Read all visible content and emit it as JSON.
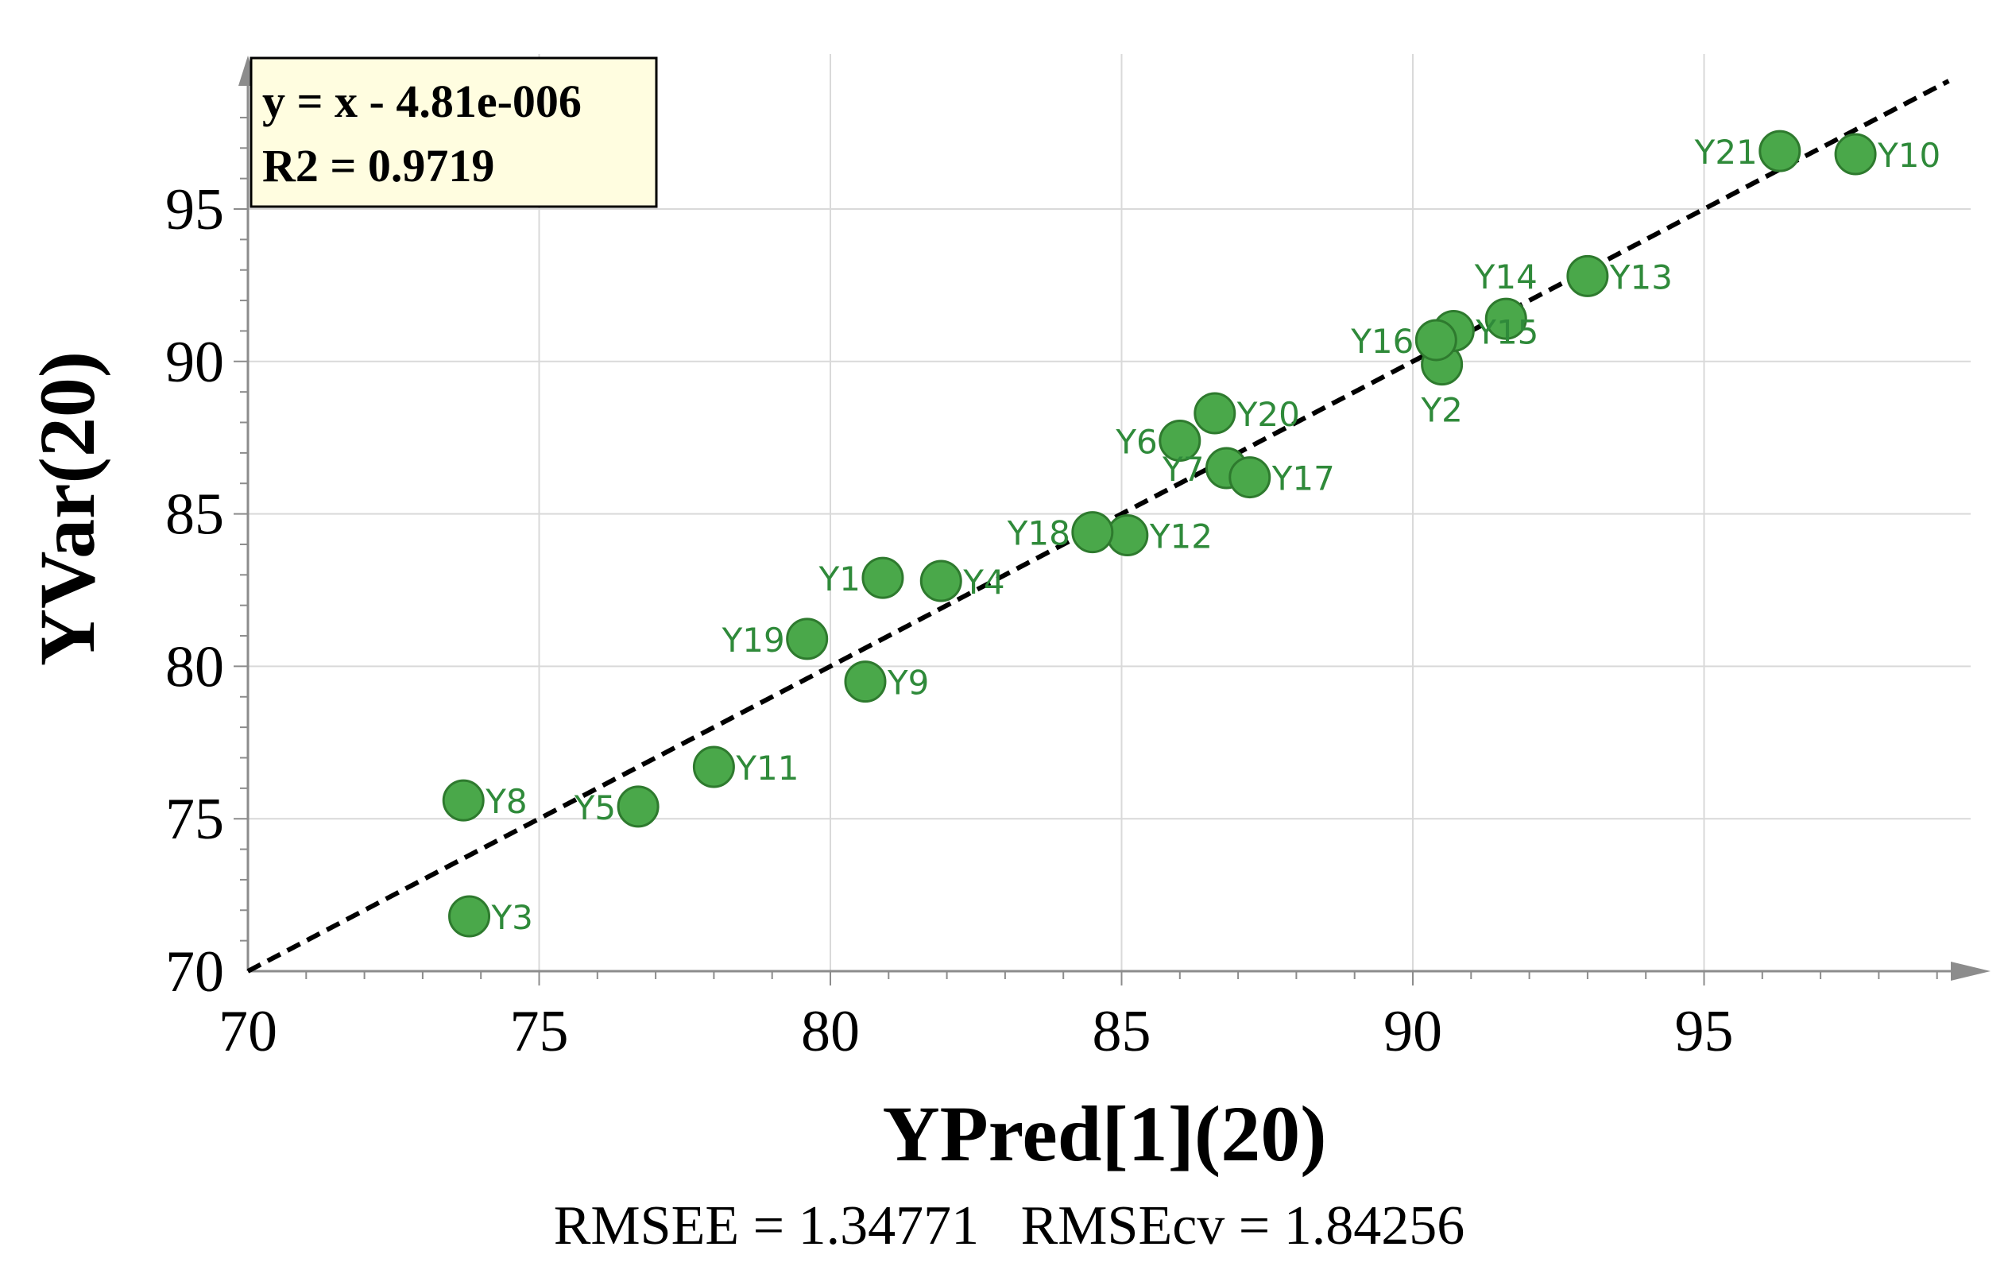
{
  "chart_data": {
    "type": "scatter",
    "xlabel": "YPred[1](20)",
    "ylabel": "YVar(20)",
    "xlim": [
      70,
      100
    ],
    "ylim": [
      70,
      99
    ],
    "x_ticks": [
      70,
      75,
      80,
      85,
      90,
      95
    ],
    "y_ticks": [
      70,
      75,
      80,
      85,
      90,
      95
    ],
    "grid": true,
    "fit_line": {
      "slope": 1,
      "intercept": 0,
      "style": "dashed",
      "color": "#000000"
    },
    "annotation": {
      "equation": "y = x - 4.81e-006",
      "r2": "R2 = 0.9719",
      "placement": "top-left"
    },
    "footer": "RMSEE = 1.34771   RMSEcv = 1.84256",
    "colors": {
      "point_fill": "#4aa84a",
      "point_stroke": "#2e7a2e",
      "label": "#2f8a3a",
      "annotation_bg": "#fffde0",
      "grid": "#d9d9d9",
      "axis": "#8c8c8c"
    },
    "series": [
      {
        "name": "Observations",
        "points": [
          {
            "label": "Y1",
            "x": 80.9,
            "y": 82.9,
            "label_pos": "left"
          },
          {
            "label": "Y2",
            "x": 90.5,
            "y": 89.9,
            "label_pos": "below"
          },
          {
            "label": "Y3",
            "x": 73.8,
            "y": 71.8,
            "label_pos": "right"
          },
          {
            "label": "Y4",
            "x": 81.9,
            "y": 82.8,
            "label_pos": "right"
          },
          {
            "label": "Y5",
            "x": 76.7,
            "y": 75.4,
            "label_pos": "left"
          },
          {
            "label": "Y6",
            "x": 86.0,
            "y": 87.4,
            "label_pos": "left"
          },
          {
            "label": "Y7",
            "x": 86.8,
            "y": 86.5,
            "label_pos": "left"
          },
          {
            "label": "Y8",
            "x": 73.7,
            "y": 75.6,
            "label_pos": "right"
          },
          {
            "label": "Y9",
            "x": 80.6,
            "y": 79.5,
            "label_pos": "right"
          },
          {
            "label": "Y10",
            "x": 97.6,
            "y": 96.8,
            "label_pos": "right"
          },
          {
            "label": "Y11",
            "x": 78.0,
            "y": 76.7,
            "label_pos": "right"
          },
          {
            "label": "Y12",
            "x": 85.1,
            "y": 84.3,
            "label_pos": "right"
          },
          {
            "label": "Y13",
            "x": 93.0,
            "y": 92.8,
            "label_pos": "right"
          },
          {
            "label": "Y14",
            "x": 91.6,
            "y": 91.4,
            "label_pos": "above"
          },
          {
            "label": "Y15",
            "x": 90.7,
            "y": 91.0,
            "label_pos": "right"
          },
          {
            "label": "Y16",
            "x": 90.4,
            "y": 90.7,
            "label_pos": "left"
          },
          {
            "label": "Y17",
            "x": 87.2,
            "y": 86.2,
            "label_pos": "right"
          },
          {
            "label": "Y18",
            "x": 84.5,
            "y": 84.4,
            "label_pos": "left"
          },
          {
            "label": "Y19",
            "x": 79.6,
            "y": 80.9,
            "label_pos": "left"
          },
          {
            "label": "Y20",
            "x": 86.6,
            "y": 88.3,
            "label_pos": "right"
          },
          {
            "label": "Y21",
            "x": 96.3,
            "y": 96.9,
            "label_pos": "left"
          }
        ]
      }
    ]
  }
}
